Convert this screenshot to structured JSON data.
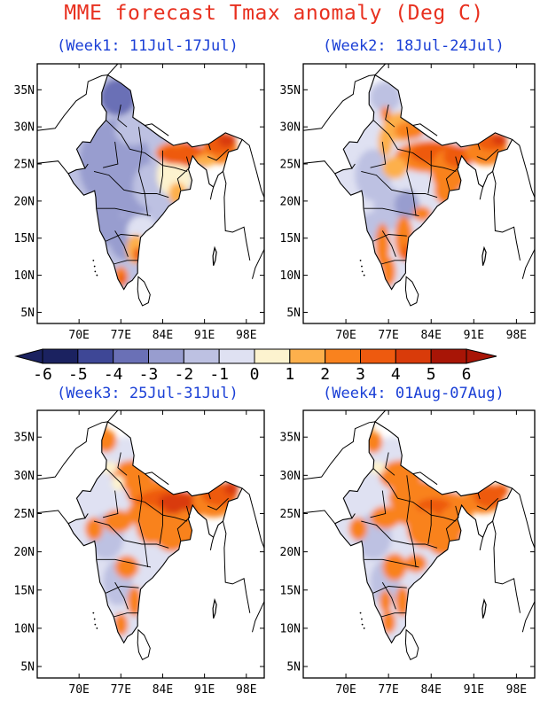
{
  "title": "MME forecast Tmax anomaly (Deg C)",
  "panels": [
    {
      "label": "(Week1: 11Jul-17Jul)",
      "pattern": "mostly-below-normal-west-central; above-normal-northeast-and-east"
    },
    {
      "label": "(Week2: 18Jul-24Jul)",
      "pattern": "mixed; above-normal-north-east-and-south-east"
    },
    {
      "label": "(Week3: 25Jul-31Jul)",
      "pattern": "above-normal-north-central-east-and-northeast; below-normal-west-and-peninsula"
    },
    {
      "label": "(Week4: 01Aug-07Aug)",
      "pattern": "above-normal-north-central-and-east; below-normal-west-and-peninsula"
    }
  ],
  "axes": {
    "lon_labels": [
      "70E",
      "77E",
      "84E",
      "91E",
      "98E"
    ],
    "lat_labels": [
      "35N",
      "30N",
      "25N",
      "20N",
      "15N",
      "10N",
      "5N"
    ]
  },
  "colorbar": {
    "tick_labels": [
      "-6",
      "-5",
      "-4",
      "-3",
      "-2",
      "-1",
      "0",
      "1",
      "2",
      "3",
      "4",
      "5",
      "6"
    ],
    "colors": [
      "#1b2260",
      "#3e4796",
      "#6a70b6",
      "#989dcf",
      "#bdc1e2",
      "#dfe1f2",
      "#fdf3cf",
      "#fdb04c",
      "#f9821e",
      "#ee5a0f",
      "#d93b0a",
      "#a81506"
    ]
  }
}
